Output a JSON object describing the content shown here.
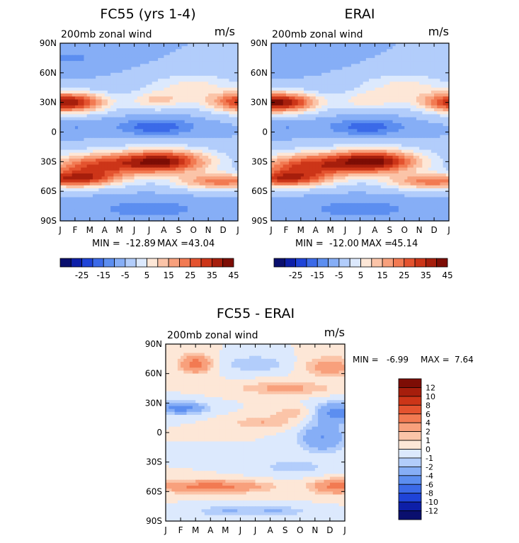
{
  "chart_data": [
    {
      "type": "heatmap",
      "title": "FC55 (yrs 1-4)",
      "subtitle": "200mb zonal wind",
      "units": "m/s",
      "x": [
        "J",
        "F",
        "M",
        "A",
        "M",
        "J",
        "J",
        "A",
        "S",
        "O",
        "N",
        "D",
        "J"
      ],
      "y": [
        "90N",
        "60N",
        "30N",
        "0",
        "30S",
        "60S",
        "90S"
      ],
      "stats": {
        "min_label": "MIN =",
        "min": "-12.89",
        "max_label": "MAX =",
        "max": "43.04"
      },
      "colorbar": {
        "ticks": [
          "-25",
          "-15",
          "-5",
          "5",
          "15",
          "25",
          "35",
          "45"
        ],
        "levels": [
          -30,
          -25,
          -20,
          -15,
          -10,
          -5,
          0,
          5,
          10,
          15,
          20,
          25,
          30,
          35,
          40,
          45,
          50
        ]
      },
      "features": [
        {
          "lat": 30,
          "month": 0.4,
          "amp": 45,
          "dlat": 10,
          "dmon": 2.6
        },
        {
          "lat": 30,
          "month": 12.6,
          "amp": 38,
          "dlat": 10,
          "dmon": 2.4
        },
        {
          "lat": 32,
          "month": 6.5,
          "amp": 14,
          "dlat": 9,
          "dmon": 1.8
        },
        {
          "lat": -30,
          "month": 6.8,
          "amp": 46,
          "dlat": 12,
          "dmon": 3.2
        },
        {
          "lat": -35,
          "month": 2.0,
          "amp": 30,
          "dlat": 13,
          "dmon": 3.0
        },
        {
          "lat": -48,
          "month": 0.8,
          "amp": 32,
          "dlat": 8,
          "dmon": 3.0
        },
        {
          "lat": -50,
          "month": 11.0,
          "amp": 28,
          "dlat": 8,
          "dmon": 3.0
        },
        {
          "lat": 45,
          "month": 9.0,
          "amp": 12,
          "dlat": 14,
          "dmon": 3.0
        },
        {
          "lat": 5,
          "month": 6.5,
          "amp": -14,
          "dlat": 8,
          "dmon": 2.5
        },
        {
          "lat": 5,
          "month": 1.0,
          "amp": -5,
          "dlat": 8,
          "dmon": 2.0
        },
        {
          "lat": 75,
          "month": 0.5,
          "amp": -6,
          "dlat": 10,
          "dmon": 3.0
        },
        {
          "lat": -78,
          "month": 6.0,
          "amp": -8,
          "dlat": 10,
          "dmon": 4.0
        }
      ]
    },
    {
      "type": "heatmap",
      "title": "ERAI",
      "subtitle": "200mb zonal wind",
      "units": "m/s",
      "x": [
        "J",
        "F",
        "M",
        "A",
        "M",
        "J",
        "J",
        "A",
        "S",
        "O",
        "N",
        "D",
        "J"
      ],
      "y": [
        "90N",
        "60N",
        "30N",
        "0",
        "30S",
        "60S",
        "90S"
      ],
      "stats": {
        "min_label": "MIN =",
        "min": "-12.00",
        "max_label": "MAX =",
        "max": "45.14"
      },
      "colorbar": {
        "ticks": [
          "-25",
          "-15",
          "-5",
          "5",
          "15",
          "25",
          "35",
          "45"
        ],
        "levels": [
          -30,
          -25,
          -20,
          -15,
          -10,
          -5,
          0,
          5,
          10,
          15,
          20,
          25,
          30,
          35,
          40,
          45,
          50
        ]
      },
      "features": [
        {
          "lat": 30,
          "month": 0.4,
          "amp": 47,
          "dlat": 10,
          "dmon": 2.6
        },
        {
          "lat": 30,
          "month": 12.6,
          "amp": 40,
          "dlat": 10,
          "dmon": 2.4
        },
        {
          "lat": 32,
          "month": 6.5,
          "amp": 12,
          "dlat": 9,
          "dmon": 1.8
        },
        {
          "lat": -30,
          "month": 6.8,
          "amp": 48,
          "dlat": 12,
          "dmon": 3.2
        },
        {
          "lat": -35,
          "month": 2.0,
          "amp": 32,
          "dlat": 13,
          "dmon": 3.0
        },
        {
          "lat": -48,
          "month": 0.8,
          "amp": 30,
          "dlat": 8,
          "dmon": 3.0
        },
        {
          "lat": -50,
          "month": 11.0,
          "amp": 28,
          "dlat": 8,
          "dmon": 3.0
        },
        {
          "lat": 45,
          "month": 9.0,
          "amp": 12,
          "dlat": 14,
          "dmon": 3.0
        },
        {
          "lat": 5,
          "month": 6.5,
          "amp": -13,
          "dlat": 8,
          "dmon": 2.5
        },
        {
          "lat": 5,
          "month": 1.0,
          "amp": -5,
          "dlat": 8,
          "dmon": 2.0
        },
        {
          "lat": 75,
          "month": 0.5,
          "amp": -5,
          "dlat": 10,
          "dmon": 3.0
        },
        {
          "lat": -78,
          "month": 6.0,
          "amp": -8,
          "dlat": 10,
          "dmon": 4.0
        }
      ]
    },
    {
      "type": "heatmap",
      "title": "FC55 - ERAI",
      "subtitle": "200mb zonal wind",
      "units": "m/s",
      "x": [
        "J",
        "F",
        "M",
        "A",
        "M",
        "J",
        "J",
        "A",
        "S",
        "O",
        "N",
        "D",
        "J"
      ],
      "y": [
        "90N",
        "60N",
        "30N",
        "0",
        "30S",
        "60S",
        "90S"
      ],
      "stats": {
        "min_label": "MIN =",
        "min": "-6.99",
        "max_label": "MAX =",
        "max": "7.64"
      },
      "colorbar": {
        "ticks": [
          "12",
          "10",
          "8",
          "6",
          "4",
          "2",
          "1",
          "0",
          "-1",
          "-2",
          "-4",
          "-6",
          "-8",
          "-10",
          "-12"
        ],
        "levels": [
          -14,
          -12,
          -10,
          -8,
          -6,
          -4,
          -2,
          -1,
          0,
          1,
          2,
          4,
          6,
          8,
          10,
          12,
          14
        ]
      },
      "features": [
        {
          "lat": 70,
          "month": 2.0,
          "amp": 5,
          "dlat": 9,
          "dmon": 1.0
        },
        {
          "lat": 67,
          "month": 11.0,
          "amp": 3,
          "dlat": 10,
          "dmon": 1.6
        },
        {
          "lat": 45,
          "month": 8.0,
          "amp": 2.5,
          "dlat": 6,
          "dmon": 3.0
        },
        {
          "lat": 25,
          "month": 1.0,
          "amp": -5,
          "dlat": 6,
          "dmon": 1.6
        },
        {
          "lat": 20,
          "month": 11.5,
          "amp": -5,
          "dlat": 10,
          "dmon": 1.4
        },
        {
          "lat": 70,
          "month": 6.0,
          "amp": -2,
          "dlat": 8,
          "dmon": 2.0
        },
        {
          "lat": -5,
          "month": 10.5,
          "amp": -4,
          "dlat": 14,
          "dmon": 1.5
        },
        {
          "lat": -55,
          "month": 3.0,
          "amp": 5,
          "dlat": 6,
          "dmon": 3.5
        },
        {
          "lat": -55,
          "month": 11.5,
          "amp": 5,
          "dlat": 7,
          "dmon": 1.6
        },
        {
          "lat": -80,
          "month": 4.0,
          "amp": -2,
          "dlat": 5,
          "dmon": 2.0
        },
        {
          "lat": -80,
          "month": 7.5,
          "amp": -2,
          "dlat": 5,
          "dmon": 2.0
        },
        {
          "lat": 10,
          "month": 6.5,
          "amp": 2,
          "dlat": 6,
          "dmon": 2.0
        },
        {
          "lat": -35,
          "month": 8.5,
          "amp": -1.5,
          "dlat": 8,
          "dmon": 2.5
        },
        {
          "lat": 20,
          "month": 8.5,
          "amp": 1.5,
          "dlat": 6,
          "dmon": 1.5
        }
      ]
    }
  ]
}
